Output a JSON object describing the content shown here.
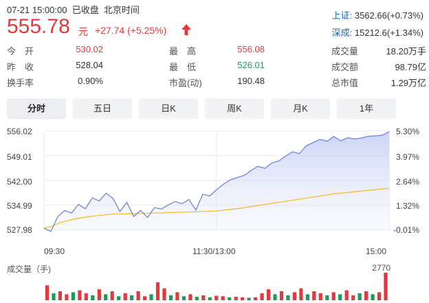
{
  "header": {
    "status_line": "07-21 15:00:00  已收盘  北京时间",
    "price": "555.78",
    "unit": "元",
    "change": "+27.74 (+5.25%)"
  },
  "indices": [
    {
      "name": "上证:",
      "value": "3562.66(+0.73%)"
    },
    {
      "name": "深成:",
      "value": "15212.6(+1.34%)"
    }
  ],
  "stats": {
    "col1": [
      {
        "label": "今　开",
        "value": "530.02",
        "tone": "red"
      },
      {
        "label": "昨　收",
        "value": "528.04",
        "tone": "dark"
      },
      {
        "label": "换手率",
        "value": "0.90%",
        "tone": "dark"
      }
    ],
    "col2": [
      {
        "label": "最　高",
        "value": "556.08",
        "tone": "red"
      },
      {
        "label": "最　低",
        "value": "526.01",
        "tone": "green"
      },
      {
        "label": "市盈(动)",
        "value": "190.48",
        "tone": "dark"
      }
    ],
    "col3": [
      {
        "label": "成交量",
        "value": "18.20万手",
        "tone": "dark"
      },
      {
        "label": "成交额",
        "value": "98.79亿",
        "tone": "dark"
      },
      {
        "label": "总市值",
        "value": "1.29万亿",
        "tone": "dark"
      }
    ]
  },
  "tabs": [
    {
      "label": "分时",
      "active": true
    },
    {
      "label": "五日",
      "active": false
    },
    {
      "label": "日K",
      "active": false
    },
    {
      "label": "周K",
      "active": false
    },
    {
      "label": "月K",
      "active": false
    },
    {
      "label": "1年",
      "active": false
    }
  ],
  "colors": {
    "up": "#e4393c",
    "down": "#1a9e5a",
    "price_line": "#6f86e0",
    "avg_line": "#f5b91a",
    "index_link": "#1565c0"
  },
  "chart_data": {
    "type": "line",
    "ylim": [
      527.98,
      556.02
    ],
    "y_ticks_left": [
      "556.02",
      "549.01",
      "542.00",
      "534.99",
      "527.98"
    ],
    "y_ticks_right": [
      "5.30%",
      "3.97%",
      "2.64%",
      "1.32%",
      "-0.01%"
    ],
    "x_ticks": [
      "09:30",
      "11:30/13:00",
      "15:00"
    ],
    "series": [
      {
        "x": [
          0,
          0.02,
          0.04,
          0.06,
          0.08,
          0.1,
          0.12,
          0.14,
          0.16,
          0.18,
          0.2,
          0.22,
          0.24,
          0.26,
          0.28,
          0.3,
          0.32,
          0.34,
          0.36,
          0.38,
          0.4,
          0.42,
          0.44,
          0.46,
          0.48,
          0.5,
          0.52,
          0.54,
          0.56,
          0.58,
          0.6,
          0.62,
          0.64,
          0.66,
          0.68,
          0.7,
          0.72,
          0.74,
          0.76,
          0.78,
          0.8,
          0.82,
          0.84,
          0.86,
          0.88,
          0.9,
          0.92,
          0.94,
          0.96,
          0.98,
          1.0
        ],
        "values": [
          528.5,
          527.6,
          531.8,
          533.5,
          532.8,
          535.2,
          534.0,
          537.1,
          536.2,
          538.4,
          536.9,
          533.2,
          535.8,
          531.8,
          533.5,
          531.5,
          534.3,
          533.9,
          535.1,
          536.0,
          535.4,
          536.6,
          533.6,
          538.1,
          537.6,
          539.4,
          540.9,
          542.2,
          542.8,
          543.4,
          544.8,
          546.0,
          545.4,
          546.9,
          547.5,
          548.9,
          550.1,
          549.6,
          551.8,
          552.7,
          553.6,
          553.1,
          554.4,
          553.2,
          554.1,
          553.7,
          554.0,
          554.5,
          554.6,
          554.8,
          555.78
        ]
      },
      {
        "x": [
          0,
          0.02,
          0.04,
          0.06,
          0.08,
          0.1,
          0.12,
          0.14,
          0.16,
          0.18,
          0.2,
          0.22,
          0.24,
          0.26,
          0.28,
          0.3,
          0.32,
          0.34,
          0.36,
          0.38,
          0.4,
          0.42,
          0.44,
          0.46,
          0.48,
          0.5,
          0.52,
          0.54,
          0.56,
          0.58,
          0.6,
          0.62,
          0.64,
          0.66,
          0.68,
          0.7,
          0.72,
          0.74,
          0.76,
          0.78,
          0.8,
          0.82,
          0.84,
          0.86,
          0.88,
          0.9,
          0.92,
          0.94,
          0.96,
          0.98,
          1.0
        ],
        "values": [
          528.6,
          528.9,
          529.8,
          530.4,
          530.9,
          531.3,
          531.6,
          531.9,
          532.1,
          532.3,
          532.5,
          532.5,
          532.6,
          532.6,
          532.7,
          532.7,
          532.8,
          532.8,
          532.9,
          533.0,
          533.0,
          533.1,
          533.1,
          533.2,
          533.3,
          533.4,
          533.6,
          533.8,
          534.0,
          534.3,
          534.6,
          534.9,
          535.2,
          535.5,
          535.8,
          536.1,
          536.4,
          536.7,
          537.0,
          537.3,
          537.6,
          537.9,
          538.2,
          538.4,
          538.6,
          538.8,
          539.0,
          539.2,
          539.4,
          539.6,
          539.8
        ]
      }
    ]
  },
  "volume": {
    "title": "成交量（手)",
    "max_label": "2770",
    "max": 2770,
    "bars": [
      {
        "v": 1500,
        "up": true
      },
      {
        "v": 700,
        "up": false
      },
      {
        "v": 900,
        "up": true
      },
      {
        "v": 600,
        "up": true
      },
      {
        "v": 800,
        "up": false
      },
      {
        "v": 1000,
        "up": true
      },
      {
        "v": 700,
        "up": true
      },
      {
        "v": 500,
        "up": false
      },
      {
        "v": 1100,
        "up": true
      },
      {
        "v": 600,
        "up": false
      },
      {
        "v": 900,
        "up": true
      },
      {
        "v": 400,
        "up": false
      },
      {
        "v": 700,
        "up": true
      },
      {
        "v": 500,
        "up": false
      },
      {
        "v": 900,
        "up": true
      },
      {
        "v": 400,
        "up": true
      },
      {
        "v": 600,
        "up": false
      },
      {
        "v": 1800,
        "up": true
      },
      {
        "v": 1200,
        "up": true
      },
      {
        "v": 500,
        "up": false
      },
      {
        "v": 800,
        "up": true
      },
      {
        "v": 400,
        "up": false
      },
      {
        "v": 600,
        "up": true
      },
      {
        "v": 350,
        "up": false
      },
      {
        "v": 500,
        "up": true
      },
      {
        "v": 300,
        "up": false
      },
      {
        "v": 450,
        "up": true
      },
      {
        "v": 400,
        "up": true
      },
      {
        "v": 300,
        "up": false
      },
      {
        "v": 350,
        "up": true
      },
      {
        "v": 300,
        "up": true
      },
      {
        "v": 250,
        "up": false
      },
      {
        "v": 300,
        "up": true
      },
      {
        "v": 700,
        "up": true
      },
      {
        "v": 1100,
        "up": true
      },
      {
        "v": 600,
        "up": false
      },
      {
        "v": 900,
        "up": true
      },
      {
        "v": 500,
        "up": false
      },
      {
        "v": 800,
        "up": true
      },
      {
        "v": 1200,
        "up": true
      },
      {
        "v": 600,
        "up": false
      },
      {
        "v": 900,
        "up": true
      },
      {
        "v": 700,
        "up": true
      },
      {
        "v": 500,
        "up": false
      },
      {
        "v": 800,
        "up": true
      },
      {
        "v": 600,
        "up": false
      },
      {
        "v": 1000,
        "up": true
      },
      {
        "v": 500,
        "up": true
      },
      {
        "v": 700,
        "up": false
      },
      {
        "v": 900,
        "up": true
      },
      {
        "v": 600,
        "up": false
      },
      {
        "v": 800,
        "up": true
      },
      {
        "v": 2770,
        "up": true
      }
    ]
  }
}
